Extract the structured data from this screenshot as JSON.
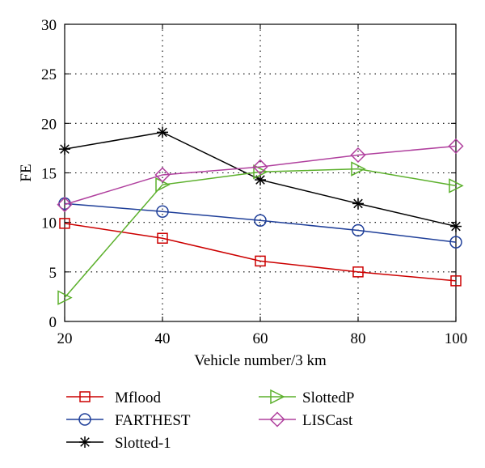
{
  "chart_data": {
    "type": "line",
    "title": "",
    "xlabel": "Vehicle number/3 km",
    "ylabel": "FE",
    "xlim": [
      20,
      100
    ],
    "ylim": [
      0,
      30
    ],
    "xticks": [
      20,
      40,
      60,
      80,
      100
    ],
    "yticks": [
      0,
      5,
      10,
      15,
      20,
      25,
      30
    ],
    "grid": true,
    "legend_position": "bottom",
    "x": [
      20,
      40,
      60,
      80,
      100
    ],
    "series": [
      {
        "name": "Mflood",
        "color": "#cc0000",
        "marker": "square",
        "values": [
          9.9,
          8.4,
          6.1,
          5.0,
          4.1
        ]
      },
      {
        "name": "FARTHEST",
        "color": "#1f3f99",
        "marker": "circle",
        "values": [
          11.9,
          11.1,
          10.2,
          9.2,
          8.0
        ]
      },
      {
        "name": "Slotted-1",
        "color": "#000000",
        "marker": "asterisk",
        "values": [
          17.4,
          19.1,
          14.3,
          11.9,
          9.6
        ]
      },
      {
        "name": "SlottedP",
        "color": "#5cb02c",
        "marker": "triangle-right",
        "values": [
          2.4,
          13.8,
          15.1,
          15.4,
          13.7
        ]
      },
      {
        "name": "LISCast",
        "color": "#b0409e",
        "marker": "diamond",
        "values": [
          11.8,
          14.8,
          15.6,
          16.8,
          17.7
        ]
      }
    ]
  }
}
